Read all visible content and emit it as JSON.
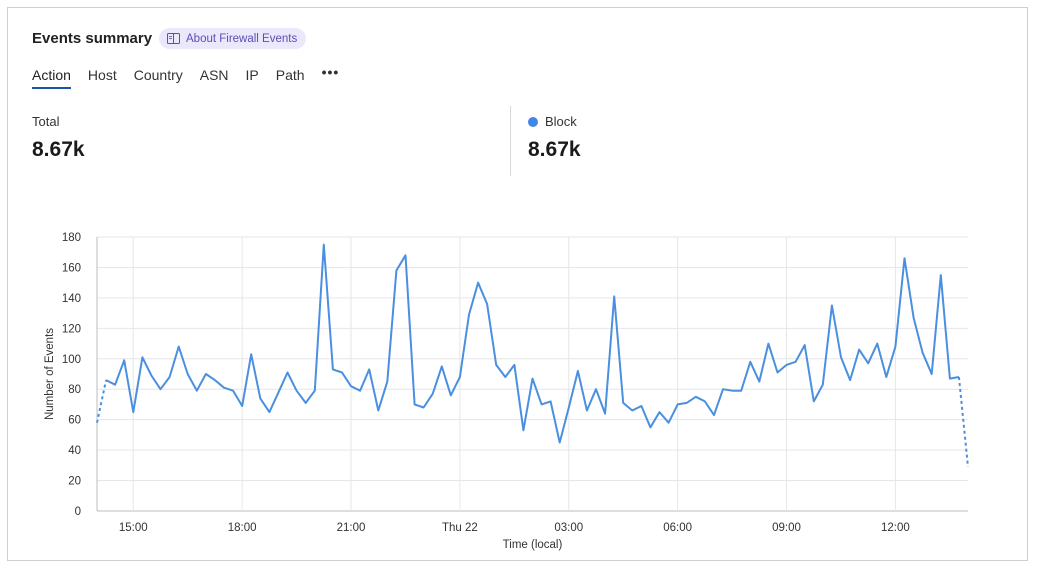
{
  "card": {
    "title": "Events summary",
    "about_label": "About Firewall Events",
    "about_icon": "book-icon"
  },
  "tabs": [
    {
      "label": "Action",
      "active": true
    },
    {
      "label": "Host",
      "active": false
    },
    {
      "label": "Country",
      "active": false
    },
    {
      "label": "ASN",
      "active": false
    },
    {
      "label": "IP",
      "active": false
    },
    {
      "label": "Path",
      "active": false
    }
  ],
  "more_label": "•••",
  "stats": {
    "total": {
      "label": "Total",
      "value": "8.67k"
    },
    "block": {
      "label": "Block",
      "value": "8.67k",
      "color": "#4285e8"
    }
  },
  "chart_data": {
    "type": "line",
    "xlabel": "Time (local)",
    "ylabel": "Number of Events",
    "ylim": [
      0,
      180
    ],
    "yticks": [
      0,
      20,
      40,
      60,
      80,
      100,
      120,
      140,
      160,
      180
    ],
    "xlim": [
      0,
      80
    ],
    "xticks": [
      {
        "x": 3.33,
        "label": "15:00"
      },
      {
        "x": 13.33,
        "label": "18:00"
      },
      {
        "x": 23.33,
        "label": "21:00"
      },
      {
        "x": 33.33,
        "label": "Thu 22"
      },
      {
        "x": 43.33,
        "label": "03:00"
      },
      {
        "x": 53.33,
        "label": "06:00"
      },
      {
        "x": 63.33,
        "label": "09:00"
      },
      {
        "x": 73.33,
        "label": "12:00"
      }
    ],
    "grid": true,
    "color": "#4a8fe0",
    "series": [
      {
        "values": [
          58,
          86,
          83,
          99,
          65,
          101,
          89,
          80,
          88,
          108,
          90,
          79,
          90,
          86,
          81,
          79,
          69,
          103,
          74,
          65,
          78,
          91,
          79,
          71,
          79,
          175,
          93,
          91,
          82,
          79,
          93,
          66,
          85,
          158,
          168,
          70,
          68,
          77,
          95,
          76,
          88,
          129,
          150,
          136,
          96,
          88,
          96,
          53,
          87,
          70,
          72,
          45,
          68,
          92,
          66,
          80,
          64,
          141,
          71,
          66,
          69,
          55,
          65,
          58,
          70,
          71,
          75,
          72,
          63,
          80,
          79,
          79,
          98,
          85,
          110,
          91,
          96,
          98,
          109,
          72,
          83,
          135,
          101,
          86,
          106,
          97,
          110,
          88,
          108,
          166,
          127,
          104,
          90,
          155,
          87,
          88,
          29
        ],
        "dashed_segments": [
          [
            0,
            1
          ],
          [
            95,
            96
          ]
        ]
      }
    ]
  }
}
